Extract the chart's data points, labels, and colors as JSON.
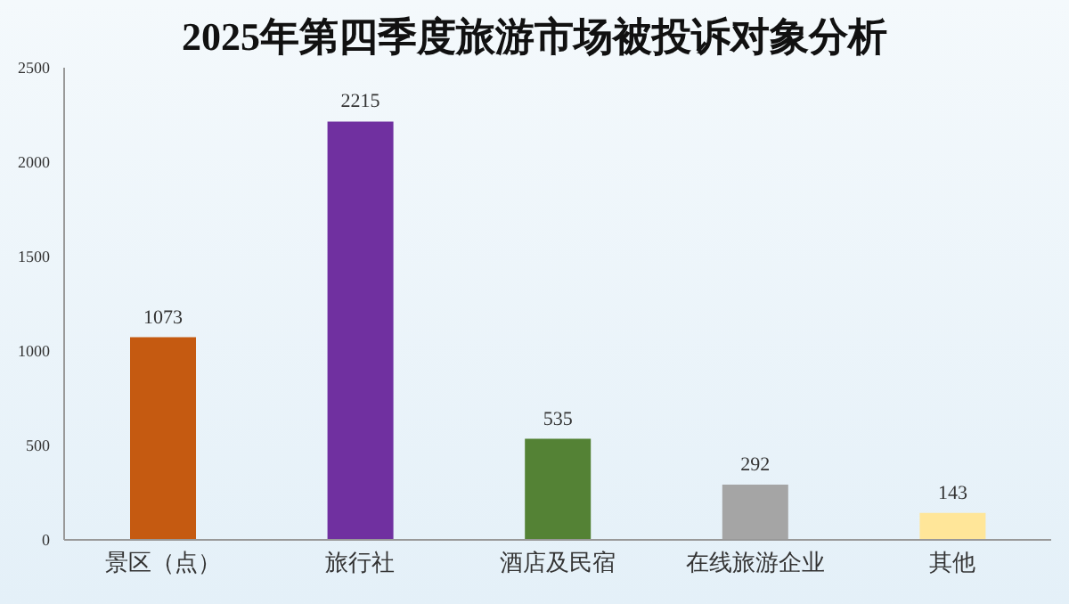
{
  "chart_data": {
    "type": "bar",
    "title": "2025年第四季度旅游市场被投诉对象分析",
    "categories": [
      "景区（点）",
      "旅行社",
      "酒店及民宿",
      "在线旅游企业",
      "其他"
    ],
    "values": [
      1073,
      2215,
      535,
      292,
      143
    ],
    "colors": [
      "#c55a11",
      "#7030a0",
      "#548235",
      "#a5a5a5",
      "#ffe699"
    ],
    "ylim": [
      0,
      2500
    ],
    "yticks": [
      0,
      500,
      1000,
      1500,
      2000,
      2500
    ],
    "data_labels": true,
    "grid": false,
    "legend": false
  }
}
